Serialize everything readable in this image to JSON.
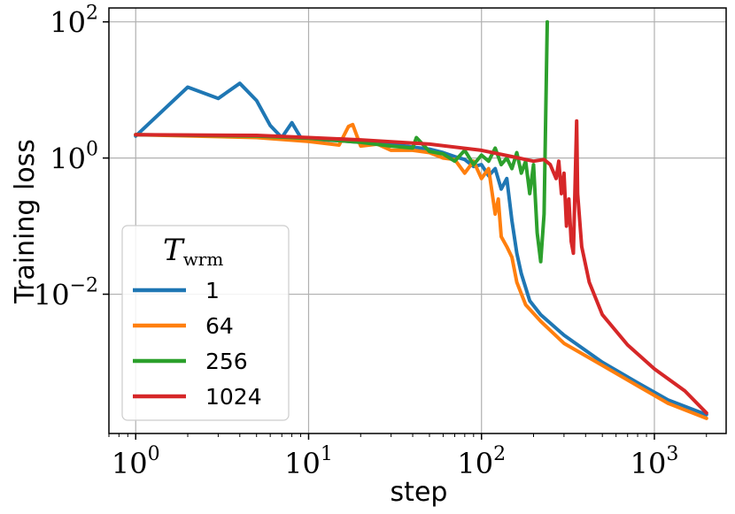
{
  "chart_data": {
    "type": "line",
    "xlabel": "step",
    "ylabel": "Training loss",
    "xscale": "log",
    "yscale": "log",
    "xlim": [
      0.7,
      2600
    ],
    "ylim": [
      9e-05,
      160
    ],
    "grid": true,
    "x_ticks": [
      {
        "value": 1,
        "base": "10",
        "exp": "0"
      },
      {
        "value": 10,
        "base": "10",
        "exp": "1"
      },
      {
        "value": 100,
        "base": "10",
        "exp": "2"
      },
      {
        "value": 1000,
        "base": "10",
        "exp": "3"
      }
    ],
    "y_ticks": [
      {
        "value": 0.01,
        "base": "10",
        "exp": "−2"
      },
      {
        "value": 1,
        "base": "10",
        "exp": "0"
      },
      {
        "value": 100,
        "base": "10",
        "exp": "2"
      }
    ],
    "legend": {
      "title_main": "T",
      "title_sub": "wrm",
      "placement": "lower-left"
    },
    "series": [
      {
        "name": "1",
        "color": "#1f77b4",
        "points": [
          [
            1,
            2.1
          ],
          [
            2,
            11
          ],
          [
            3,
            7.5
          ],
          [
            4,
            12.5
          ],
          [
            5,
            7
          ],
          [
            6,
            3
          ],
          [
            7,
            2
          ],
          [
            8,
            3.3
          ],
          [
            9,
            2
          ],
          [
            10,
            1.9
          ],
          [
            15,
            1.8
          ],
          [
            20,
            1.7
          ],
          [
            30,
            1.6
          ],
          [
            40,
            1.45
          ],
          [
            50,
            1.35
          ],
          [
            60,
            1.2
          ],
          [
            70,
            1.05
          ],
          [
            80,
            0.95
          ],
          [
            90,
            0.75
          ],
          [
            100,
            0.8
          ],
          [
            110,
            0.55
          ],
          [
            120,
            0.7
          ],
          [
            130,
            0.35
          ],
          [
            140,
            0.5
          ],
          [
            150,
            0.12
          ],
          [
            160,
            0.04
          ],
          [
            170,
            0.02
          ],
          [
            190,
            0.008
          ],
          [
            220,
            0.005
          ],
          [
            300,
            0.0025
          ],
          [
            500,
            0.001
          ],
          [
            800,
            0.0005
          ],
          [
            1200,
            0.00028
          ],
          [
            2000,
            0.00017
          ]
        ]
      },
      {
        "name": "64",
        "color": "#ff7f0e",
        "points": [
          [
            1,
            2.2
          ],
          [
            5,
            2
          ],
          [
            10,
            1.75
          ],
          [
            15,
            1.55
          ],
          [
            17,
            2.9
          ],
          [
            18,
            3.1
          ],
          [
            20,
            1.5
          ],
          [
            25,
            1.6
          ],
          [
            30,
            1.3
          ],
          [
            40,
            1.3
          ],
          [
            50,
            1.2
          ],
          [
            60,
            1
          ],
          [
            70,
            0.95
          ],
          [
            80,
            0.6
          ],
          [
            90,
            0.9
          ],
          [
            100,
            0.5
          ],
          [
            110,
            0.7
          ],
          [
            120,
            0.15
          ],
          [
            125,
            0.25
          ],
          [
            130,
            0.07
          ],
          [
            140,
            0.05
          ],
          [
            150,
            0.035
          ],
          [
            160,
            0.015
          ],
          [
            180,
            0.007
          ],
          [
            220,
            0.004
          ],
          [
            300,
            0.0019
          ],
          [
            500,
            0.0009
          ],
          [
            800,
            0.00045
          ],
          [
            1200,
            0.00025
          ],
          [
            2000,
            0.00015
          ]
        ]
      },
      {
        "name": "256",
        "color": "#2ca02c",
        "points": [
          [
            1,
            2.2
          ],
          [
            5,
            2.1
          ],
          [
            10,
            1.95
          ],
          [
            20,
            1.7
          ],
          [
            30,
            1.5
          ],
          [
            40,
            1.4
          ],
          [
            42,
            2
          ],
          [
            50,
            1.25
          ],
          [
            60,
            1.15
          ],
          [
            70,
            0.9
          ],
          [
            80,
            1.3
          ],
          [
            90,
            0.8
          ],
          [
            100,
            1.1
          ],
          [
            110,
            0.9
          ],
          [
            120,
            1.4
          ],
          [
            130,
            0.8
          ],
          [
            140,
            1
          ],
          [
            150,
            0.7
          ],
          [
            160,
            1.2
          ],
          [
            170,
            0.6
          ],
          [
            180,
            0.9
          ],
          [
            190,
            0.3
          ],
          [
            200,
            0.8
          ],
          [
            210,
            0.08
          ],
          [
            220,
            0.03
          ],
          [
            230,
            0.15
          ],
          [
            240,
            100
          ]
        ]
      },
      {
        "name": "1024",
        "color": "#d62728",
        "points": [
          [
            1,
            2.2
          ],
          [
            5,
            2.15
          ],
          [
            10,
            2
          ],
          [
            20,
            1.85
          ],
          [
            50,
            1.6
          ],
          [
            100,
            1.3
          ],
          [
            150,
            1.05
          ],
          [
            200,
            0.9
          ],
          [
            230,
            0.95
          ],
          [
            250,
            0.8
          ],
          [
            270,
            0.5
          ],
          [
            280,
            0.9
          ],
          [
            290,
            0.3
          ],
          [
            300,
            0.6
          ],
          [
            310,
            0.1
          ],
          [
            320,
            0.25
          ],
          [
            330,
            0.06
          ],
          [
            340,
            0.04
          ],
          [
            355,
            3.5
          ],
          [
            360,
            0.3
          ],
          [
            380,
            0.05
          ],
          [
            420,
            0.015
          ],
          [
            500,
            0.005
          ],
          [
            700,
            0.0018
          ],
          [
            1000,
            0.0008
          ],
          [
            1500,
            0.00038
          ],
          [
            2000,
            0.00018
          ]
        ]
      }
    ]
  }
}
